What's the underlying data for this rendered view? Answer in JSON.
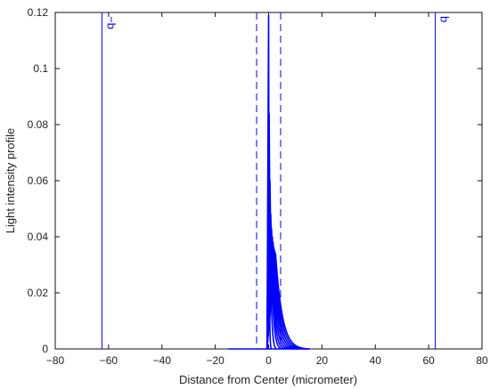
{
  "chart_data": {
    "type": "line",
    "title": "",
    "xlabel": "Distance from Center (micrometer)",
    "ylabel": "Light intensity profile",
    "xlim": [
      -80,
      80
    ],
    "ylim": [
      0,
      0.12
    ],
    "x_ticks": [
      -80,
      -60,
      -40,
      -20,
      0,
      20,
      40,
      60,
      80
    ],
    "x_tick_labels": [
      "−80",
      "−60",
      "−40",
      "−20",
      "0",
      "20",
      "40",
      "60",
      "80"
    ],
    "y_ticks": [
      0,
      0.02,
      0.04,
      0.06,
      0.08,
      0.1,
      0.12
    ],
    "y_tick_labels": [
      "0",
      "0.02",
      "0.04",
      "0.06",
      "0.08",
      "0.1",
      "0.12"
    ],
    "grid": false,
    "legend": "none",
    "line_color": "#0000ff",
    "baseline_segment": {
      "x": [
        -15,
        15
      ]
    },
    "vertical_lines": [
      {
        "x": -62.5,
        "style": "solid",
        "label": "−b"
      },
      {
        "x": 62.5,
        "style": "solid",
        "label": "b"
      },
      {
        "x": -4.5,
        "style": "dashed",
        "label": ""
      },
      {
        "x": 4.5,
        "style": "dashed",
        "label": ""
      }
    ],
    "series": [
      {
        "peak_x": 0.0,
        "peak_y": 0.119,
        "tail_end_x": 1.0
      },
      {
        "peak_x": 0.2,
        "peak_y": 0.084,
        "tail_end_x": 3.0
      },
      {
        "peak_x": 0.5,
        "peak_y": 0.06,
        "tail_end_x": 5.0
      },
      {
        "peak_x": 0.8,
        "peak_y": 0.048,
        "tail_end_x": 6.5
      },
      {
        "peak_x": 1.1,
        "peak_y": 0.043,
        "tail_end_x": 8.0
      },
      {
        "peak_x": 1.4,
        "peak_y": 0.04,
        "tail_end_x": 9.5
      },
      {
        "peak_x": 1.7,
        "peak_y": 0.038,
        "tail_end_x": 11.0
      },
      {
        "peak_x": 2.0,
        "peak_y": 0.036,
        "tail_end_x": 12.5
      },
      {
        "peak_x": 2.3,
        "peak_y": 0.035,
        "tail_end_x": 14.0
      },
      {
        "peak_x": 2.6,
        "peak_y": 0.034,
        "tail_end_x": 15.5
      }
    ]
  }
}
